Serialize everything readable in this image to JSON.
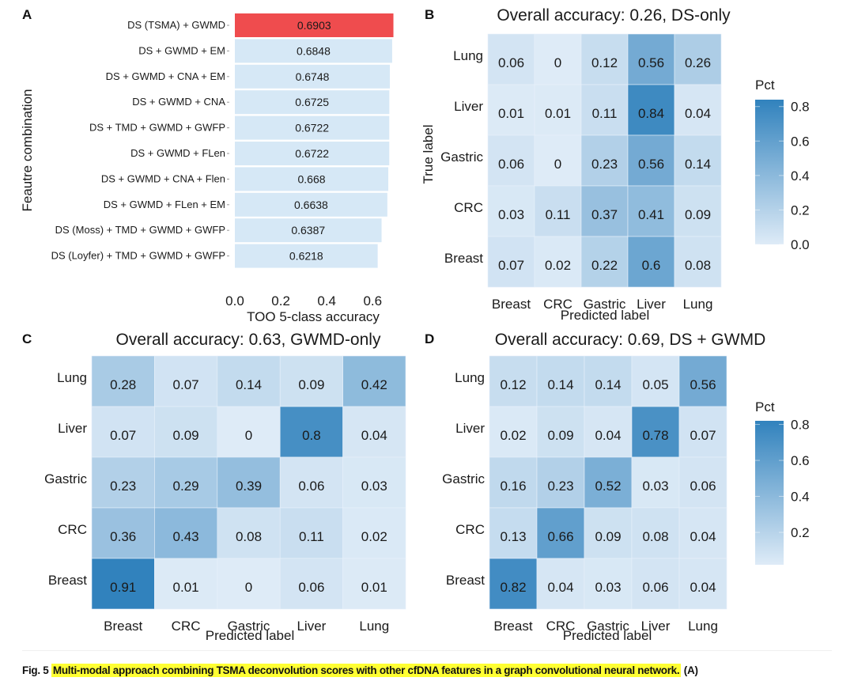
{
  "figure_caption": {
    "label": "Fig. 5",
    "text": "Multi-modal approach combining TSMA deconvolution scores with other cfDNA features in a graph convolutional neural network.",
    "suffix": "(A)"
  },
  "colors": {
    "highlight_bar": "#ef4c4e",
    "bar": "#d6e8f6",
    "heat_low": "#deebf7",
    "heat_high": "#3182bd",
    "caption_highlight": "#ffff33"
  },
  "chart_data": [
    {
      "panel": "A",
      "type": "bar",
      "orientation": "horizontal",
      "title": "",
      "xlabel": "TOO 5-class accuracy",
      "ylabel": "Feautre combination",
      "xlim": [
        0,
        0.69
      ],
      "xticks": [
        "0.0",
        "0.2",
        "0.4",
        "0.6"
      ],
      "categories": [
        "DS (TSMA) + GWMD",
        "DS + GWMD + EM",
        "DS + GWMD + CNA + EM",
        "DS + GWMD + CNA",
        "DS + TMD + GWMD + GWFP",
        "DS + GWMD + FLen",
        "DS + GWMD + CNA + Flen",
        "DS + GWMD + FLen + EM",
        "DS (Moss) + TMD + GWMD + GWFP",
        "DS (Loyfer) + TMD + GWMD + GWFP"
      ],
      "values": [
        0.6903,
        0.6848,
        0.6748,
        0.6725,
        0.6722,
        0.6722,
        0.668,
        0.6638,
        0.6387,
        0.6218
      ],
      "labels": [
        "0.6903",
        "0.6848",
        "0.6748",
        "0.6725",
        "0.6722",
        "0.6722",
        "0.668",
        "0.6638",
        "0.6387",
        "0.6218"
      ],
      "highlighted_index": 0
    },
    {
      "panel": "B",
      "type": "heatmap",
      "title": "Overall accuracy: 0.26, DS-only",
      "xlabel": "Predicted label",
      "ylabel": "True label",
      "x_categories": [
        "Breast",
        "CRC",
        "Gastric",
        "Liver",
        "Lung"
      ],
      "y_categories_top_to_bottom": [
        "Lung",
        "Liver",
        "Gastric",
        "CRC",
        "Breast"
      ],
      "values": [
        [
          "0.06",
          "0",
          "0.12",
          "0.56",
          "0.26"
        ],
        [
          "0.01",
          "0.01",
          "0.11",
          "0.84",
          "0.04"
        ],
        [
          "0.06",
          "0",
          "0.23",
          "0.56",
          "0.14"
        ],
        [
          "0.03",
          "0.11",
          "0.37",
          "0.41",
          "0.09"
        ],
        [
          "0.07",
          "0.02",
          "0.22",
          "0.6",
          "0.08"
        ]
      ],
      "legend": {
        "title": "Pct",
        "range": [
          0.0,
          0.84
        ],
        "ticks": [
          "0.8",
          "0.6",
          "0.4",
          "0.2",
          "0.0"
        ]
      }
    },
    {
      "panel": "C",
      "type": "heatmap",
      "title": "Overall accuracy: 0.63, GWMD-only",
      "xlabel": "Predicted label",
      "ylabel": "",
      "x_categories": [
        "Breast",
        "CRC",
        "Gastric",
        "Liver",
        "Lung"
      ],
      "y_categories_top_to_bottom": [
        "Lung",
        "Liver",
        "Gastric",
        "CRC",
        "Breast"
      ],
      "values": [
        [
          "0.28",
          "0.07",
          "0.14",
          "0.09",
          "0.42"
        ],
        [
          "0.07",
          "0.09",
          "0",
          "0.8",
          "0.04"
        ],
        [
          "0.23",
          "0.29",
          "0.39",
          "0.06",
          "0.03"
        ],
        [
          "0.36",
          "0.43",
          "0.08",
          "0.11",
          "0.02"
        ],
        [
          "0.91",
          "0.01",
          "0",
          "0.06",
          "0.01"
        ]
      ],
      "legend": null
    },
    {
      "panel": "D",
      "type": "heatmap",
      "title": "Overall accuracy: 0.69, DS + GWMD",
      "xlabel": "Predicted label",
      "ylabel": "",
      "x_categories": [
        "Breast",
        "CRC",
        "Gastric",
        "Liver",
        "Lung"
      ],
      "y_categories_top_to_bottom": [
        "Lung",
        "Liver",
        "Gastric",
        "CRC",
        "Breast"
      ],
      "values": [
        [
          "0.12",
          "0.14",
          "0.14",
          "0.05",
          "0.56"
        ],
        [
          "0.02",
          "0.09",
          "0.04",
          "0.78",
          "0.07"
        ],
        [
          "0.16",
          "0.23",
          "0.52",
          "0.03",
          "0.06"
        ],
        [
          "0.13",
          "0.66",
          "0.09",
          "0.08",
          "0.04"
        ],
        [
          "0.82",
          "0.04",
          "0.03",
          "0.06",
          "0.04"
        ]
      ],
      "legend": {
        "title": "Pct",
        "range": [
          0.02,
          0.82
        ],
        "ticks": [
          "0.8",
          "0.6",
          "0.4",
          "0.2"
        ]
      }
    }
  ]
}
